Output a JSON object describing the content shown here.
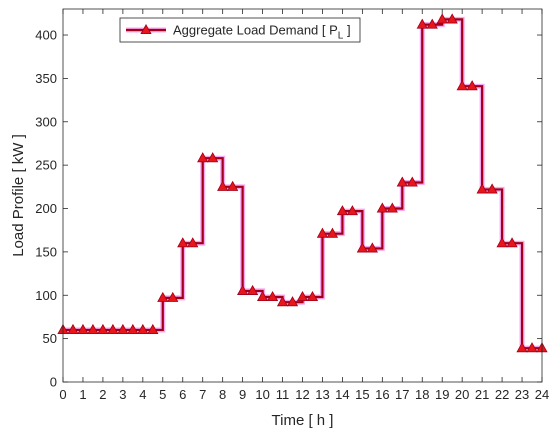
{
  "chart_data": {
    "type": "line",
    "step": "post",
    "xlabel": "Time [ h ]",
    "ylabel": "Load Profile [ kW ]",
    "xlim": [
      0,
      24
    ],
    "ylim": [
      0,
      430
    ],
    "xticks": [
      0,
      1,
      2,
      3,
      4,
      5,
      6,
      7,
      8,
      9,
      10,
      11,
      12,
      13,
      14,
      15,
      16,
      17,
      18,
      19,
      20,
      21,
      22,
      23,
      24
    ],
    "yticks": [
      0,
      50,
      100,
      150,
      200,
      250,
      300,
      350,
      400
    ],
    "legend_position": "top-left",
    "grid": false,
    "series": [
      {
        "name": "Aggregate Load Demand",
        "name_subscript_label": "P",
        "name_subscript": "L",
        "color": "#A0001A",
        "marker": "triangle",
        "marker_color": "#E8151B",
        "x": [
          0,
          0.5,
          1,
          1.5,
          2,
          2.5,
          3,
          3.5,
          4,
          4.5,
          5,
          5.5,
          6,
          6.5,
          7,
          7.5,
          8,
          8.5,
          9,
          9.5,
          10,
          10.5,
          11,
          11.5,
          12,
          12.5,
          13,
          13.5,
          14,
          14.5,
          15,
          15.5,
          16,
          16.5,
          17,
          17.5,
          18,
          18.5,
          19,
          19.5,
          20,
          20.5,
          21,
          21.5,
          22,
          22.5,
          23,
          23.5,
          24
        ],
        "y": [
          60,
          60,
          60,
          60,
          60,
          60,
          60,
          60,
          60,
          60,
          97,
          97,
          160,
          160,
          258,
          258,
          225,
          225,
          105,
          105,
          98,
          98,
          92,
          92,
          98,
          98,
          171,
          171,
          197,
          197,
          154,
          154,
          200,
          200,
          230,
          230,
          412,
          412,
          418,
          418,
          341,
          341,
          222,
          222,
          160,
          160,
          39,
          39,
          39
        ]
      }
    ]
  }
}
